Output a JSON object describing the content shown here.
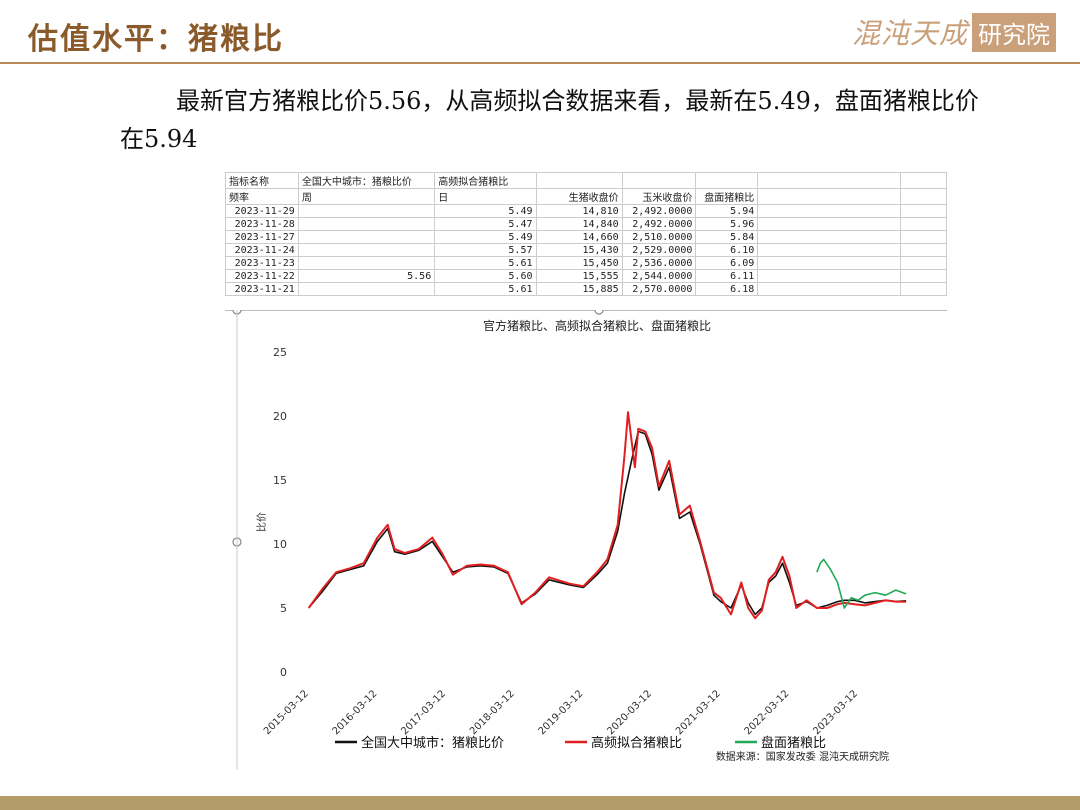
{
  "header": {
    "title": "估值水平：猪粮比",
    "logo_script": "混沌天成",
    "logo_box": "研究院"
  },
  "summary_text": "最新官方猪粮比价5.56，从高频拟合数据来看，最新在5.49，盘面猪粮比价在5.94",
  "sheet": {
    "header_row1": [
      "指标名称",
      "全国大中城市：猪粮比价",
      "高频拟合猪粮比",
      "",
      "",
      ""
    ],
    "header_row2": [
      "频率",
      "周",
      "日",
      "生猪收盘价",
      "玉米收盘价",
      "盘面猪粮比"
    ],
    "rows": [
      [
        "2023-11-29",
        "",
        "5.49",
        "14,810",
        "2,492.0000",
        "5.94"
      ],
      [
        "2023-11-28",
        "",
        "5.47",
        "14,840",
        "2,492.0000",
        "5.96"
      ],
      [
        "2023-11-27",
        "",
        "5.49",
        "14,660",
        "2,510.0000",
        "5.84"
      ],
      [
        "2023-11-24",
        "",
        "5.57",
        "15,430",
        "2,529.0000",
        "6.10"
      ],
      [
        "2023-11-23",
        "",
        "5.61",
        "15,450",
        "2,536.0000",
        "6.09"
      ],
      [
        "2023-11-22",
        "5.56",
        "5.60",
        "15,555",
        "2,544.0000",
        "6.11"
      ],
      [
        "2023-11-21",
        "",
        "5.61",
        "15,885",
        "2,570.0000",
        "6.18"
      ]
    ]
  },
  "chart_data": {
    "type": "line",
    "title": "官方猪粮比、高频拟合猪粮比、盘面猪粮比",
    "ylabel": "比价",
    "ylim": [
      0,
      25
    ],
    "yticks": [
      0,
      5,
      10,
      15,
      20,
      25
    ],
    "x_ticks": [
      "2015-03-12",
      "2016-03-12",
      "2017-03-12",
      "2018-03-12",
      "2019-03-12",
      "2020-03-12",
      "2021-03-12",
      "2022-03-12",
      "2023-03-12"
    ],
    "xlim": [
      2015.0,
      2024.0
    ],
    "source": "数据来源：国家发改委  混沌天成研究院",
    "series": [
      {
        "name": "全国大中城市：猪粮比价",
        "color": "#111111",
        "x": [
          2015.2,
          2015.4,
          2015.6,
          2015.8,
          2016.0,
          2016.2,
          2016.35,
          2016.45,
          2016.6,
          2016.8,
          2017.0,
          2017.15,
          2017.3,
          2017.5,
          2017.7,
          2017.9,
          2018.1,
          2018.3,
          2018.5,
          2018.7,
          2019.0,
          2019.2,
          2019.4,
          2019.55,
          2019.7,
          2019.8,
          2019.9,
          2020.0,
          2020.1,
          2020.2,
          2020.3,
          2020.45,
          2020.6,
          2020.75,
          2020.9,
          2021.0,
          2021.1,
          2021.2,
          2021.35,
          2021.5,
          2021.6,
          2021.7,
          2021.8,
          2021.9,
          2022.0,
          2022.1,
          2022.2,
          2022.3,
          2022.45,
          2022.6,
          2022.75,
          2022.9,
          2023.0,
          2023.15,
          2023.3,
          2023.45,
          2023.6,
          2023.75,
          2023.9
        ],
        "y": [
          5.0,
          6.3,
          7.7,
          8.0,
          8.3,
          10.2,
          11.2,
          9.4,
          9.2,
          9.5,
          10.2,
          9.0,
          7.8,
          8.2,
          8.3,
          8.2,
          7.7,
          5.4,
          6.1,
          7.2,
          6.8,
          6.6,
          7.6,
          8.5,
          11.0,
          14.0,
          16.5,
          18.8,
          18.6,
          17.0,
          14.2,
          16.0,
          12.0,
          12.5,
          10.0,
          8.0,
          6.0,
          5.5,
          5.0,
          6.8,
          5.4,
          4.5,
          5.0,
          7.0,
          7.5,
          8.5,
          7.0,
          5.2,
          5.5,
          5.0,
          5.2,
          5.5,
          5.6,
          5.6,
          5.4,
          5.5,
          5.6,
          5.5,
          5.56
        ]
      },
      {
        "name": "高频拟合猪粮比",
        "color": "#e02020",
        "x": [
          2015.2,
          2015.4,
          2015.6,
          2015.8,
          2016.0,
          2016.2,
          2016.35,
          2016.45,
          2016.6,
          2016.8,
          2017.0,
          2017.15,
          2017.3,
          2017.5,
          2017.7,
          2017.9,
          2018.1,
          2018.3,
          2018.5,
          2018.7,
          2019.0,
          2019.2,
          2019.4,
          2019.55,
          2019.7,
          2019.8,
          2019.85,
          2019.95,
          2020.0,
          2020.1,
          2020.2,
          2020.3,
          2020.45,
          2020.6,
          2020.75,
          2020.9,
          2021.0,
          2021.1,
          2021.2,
          2021.35,
          2021.5,
          2021.6,
          2021.7,
          2021.8,
          2021.9,
          2022.0,
          2022.1,
          2022.2,
          2022.3,
          2022.45,
          2022.6,
          2022.75,
          2022.9,
          2023.0,
          2023.15,
          2023.3,
          2023.45,
          2023.6,
          2023.75,
          2023.9
        ],
        "y": [
          5.0,
          6.5,
          7.8,
          8.1,
          8.5,
          10.5,
          11.5,
          9.6,
          9.3,
          9.6,
          10.5,
          9.2,
          7.6,
          8.3,
          8.4,
          8.3,
          7.8,
          5.3,
          6.2,
          7.4,
          6.9,
          6.7,
          7.8,
          8.8,
          11.5,
          17.0,
          20.3,
          16.0,
          19.0,
          18.8,
          17.5,
          14.5,
          16.5,
          12.3,
          13.0,
          10.2,
          8.2,
          6.2,
          5.8,
          4.5,
          7.0,
          5.0,
          4.2,
          4.8,
          7.2,
          7.8,
          9.0,
          7.5,
          5.0,
          5.6,
          5.0,
          5.0,
          5.3,
          5.4,
          5.3,
          5.2,
          5.4,
          5.6,
          5.5,
          5.49
        ]
      },
      {
        "name": "盘面猪粮比",
        "color": "#22aa55",
        "x": [
          2022.6,
          2022.65,
          2022.7,
          2022.8,
          2022.9,
          2023.0,
          2023.1,
          2023.2,
          2023.3,
          2023.45,
          2023.6,
          2023.75,
          2023.9
        ],
        "y": [
          7.8,
          8.5,
          8.8,
          8.0,
          7.0,
          5.0,
          5.8,
          5.6,
          6.0,
          6.2,
          6.0,
          6.4,
          6.1
        ]
      }
    ]
  }
}
